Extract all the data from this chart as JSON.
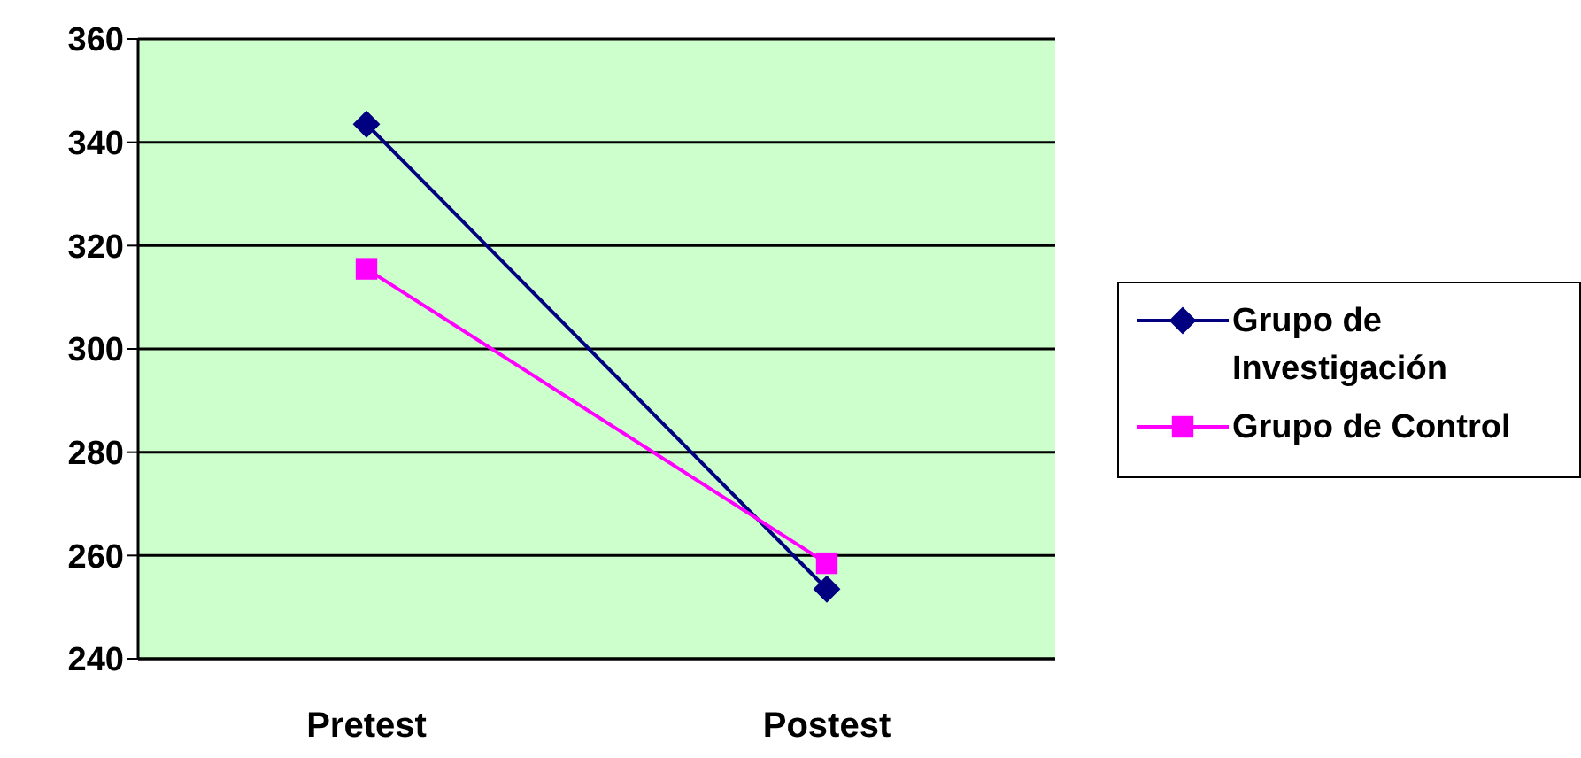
{
  "chart_data": {
    "type": "line",
    "categories": [
      "Pretest",
      "Postest"
    ],
    "series": [
      {
        "name": "Grupo de Investigación",
        "color": "#000080",
        "marker": "diamond",
        "values": [
          343.5,
          253.5
        ]
      },
      {
        "name": "Grupo de Control",
        "color": "#ff00ff",
        "marker": "square",
        "values": [
          315.5,
          258.5
        ]
      }
    ],
    "ylim": [
      240,
      360
    ],
    "yticks": [
      240,
      260,
      280,
      300,
      320,
      340,
      360
    ],
    "grid": "y",
    "legend": "right"
  }
}
